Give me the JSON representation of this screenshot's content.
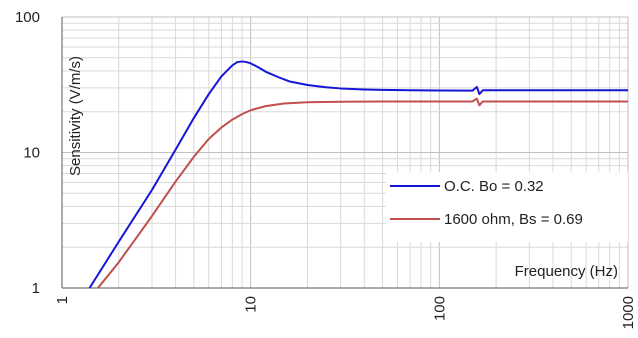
{
  "chart_data": {
    "type": "line",
    "title": "",
    "xlabel": "Frequency (Hz)",
    "ylabel": "Sensitivity (V/m/s)",
    "x_scale": "log",
    "y_scale": "log",
    "xlim": [
      1,
      1000
    ],
    "ylim": [
      1,
      100
    ],
    "x_ticks": [
      "1",
      "10",
      "100",
      "1000"
    ],
    "y_ticks": [
      "1",
      "10",
      "100"
    ],
    "grid": true,
    "legend_position": "bottom-right",
    "series": [
      {
        "name": "O.C. Bo = 0.32",
        "color": "#1515d8",
        "x": [
          1.4,
          2,
          3,
          4,
          5,
          6,
          7,
          8,
          8.5,
          9,
          9.5,
          10,
          11,
          12,
          14,
          16,
          20,
          25,
          30,
          40,
          50,
          70,
          100,
          150,
          158,
          163,
          170,
          200,
          300,
          500,
          1000
        ],
        "y": [
          1,
          2.2,
          5.3,
          10.5,
          18,
          27,
          36.5,
          44,
          46.5,
          47,
          46.5,
          45.5,
          42.5,
          39.5,
          36,
          33.5,
          31.5,
          30.3,
          29.7,
          29.2,
          29,
          28.8,
          28.7,
          28.6,
          30.5,
          27,
          28.8,
          28.8,
          28.8,
          28.8,
          28.8
        ]
      },
      {
        "name": "1600 ohm, Bs = 0.69",
        "color": "#c0504d",
        "x": [
          1.55,
          2,
          3,
          4,
          5,
          6,
          7,
          8,
          9,
          10,
          12,
          15,
          20,
          30,
          50,
          100,
          150,
          158,
          163,
          170,
          200,
          300,
          500,
          1000
        ],
        "y": [
          1,
          1.55,
          3.4,
          6.1,
          9.3,
          12.6,
          15.3,
          17.5,
          19.2,
          20.5,
          22,
          23,
          23.5,
          23.7,
          23.8,
          23.8,
          23.8,
          25,
          22.3,
          23.8,
          23.8,
          23.8,
          23.8,
          23.8
        ]
      }
    ]
  }
}
